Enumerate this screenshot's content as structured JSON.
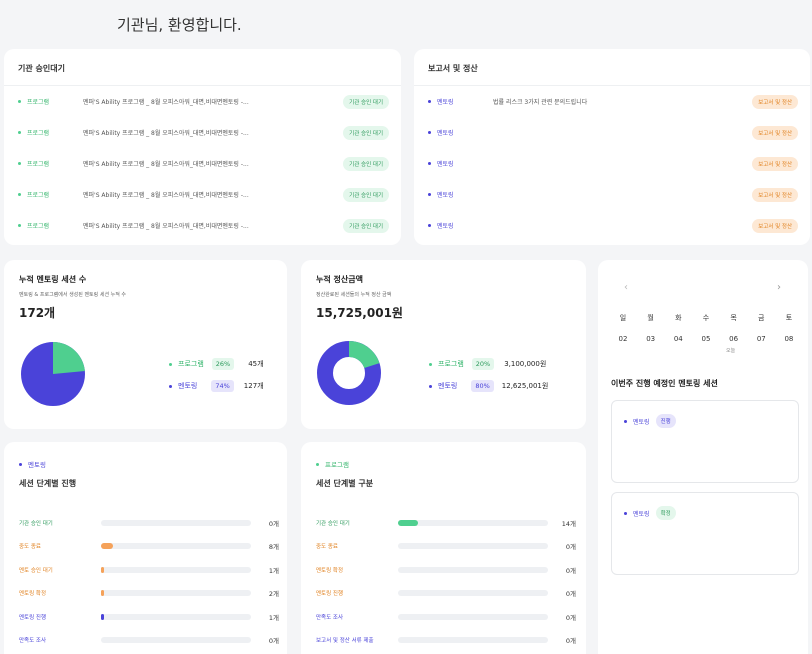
{
  "greeting": "기관님, 환영합니다.",
  "approval": {
    "title": "기관 승인대기",
    "rows": [
      {
        "category": "프로그램",
        "text": "멘퍼'S Ability 프로그램 _ 8월 오피스아워_대면,비대면멘토링 -...",
        "status": "기관 승인 대기"
      },
      {
        "category": "프로그램",
        "text": "멘퍼'S Ability 프로그램 _ 8월 오피스아워_대면,비대면멘토링 -...",
        "status": "기관 승인 대기"
      },
      {
        "category": "프로그램",
        "text": "멘퍼'S Ability 프로그램 _ 8월 오피스아워_대면,비대면멘토링 -...",
        "status": "기관 승인 대기"
      },
      {
        "category": "프로그램",
        "text": "멘퍼'S Ability 프로그램 _ 8월 오피스아워_대면,비대면멘토링 -...",
        "status": "기관 승인 대기"
      },
      {
        "category": "프로그램",
        "text": "멘퍼'S Ability 프로그램 _ 8월 오피스아워_대면,비대면멘토링 -...",
        "status": "기관 승인 대기"
      }
    ]
  },
  "reports": {
    "title": "보고서 및 정산",
    "rows": [
      {
        "category": "멘토링",
        "text": "법률 리스크 3가지 관련 문의드립니다",
        "status": "보고서 및 정산"
      },
      {
        "category": "멘토링",
        "text": "",
        "status": "보고서 및 정산"
      },
      {
        "category": "멘토링",
        "text": "",
        "status": "보고서 및 정산"
      },
      {
        "category": "멘토링",
        "text": "",
        "status": "보고서 및 정산"
      },
      {
        "category": "멘토링",
        "text": "",
        "status": "보고서 및 정산"
      }
    ]
  },
  "sessions_stat": {
    "title": "누적 멘토링 세션 수",
    "subtitle": "멘토링 & 프로그램에서 생성된 멘토링 세션 누적 수",
    "value": "172개",
    "legend": [
      {
        "name": "프로그램",
        "pct": "26%",
        "val": "45개"
      },
      {
        "name": "멘토링",
        "pct": "74%",
        "val": "127개"
      }
    ]
  },
  "settlement_stat": {
    "title": "누적 정산금액",
    "subtitle": "정산완료된 세션들의 누적 정산 금액",
    "value": "15,725,001원",
    "legend": [
      {
        "name": "프로그램",
        "pct": "20%",
        "val": "3,100,000원"
      },
      {
        "name": "멘토링",
        "pct": "80%",
        "val": "12,625,001원"
      }
    ]
  },
  "calendar": {
    "prev": "‹",
    "next": "›",
    "weekdays": [
      "일",
      "월",
      "화",
      "수",
      "목",
      "금",
      "토"
    ],
    "days": [
      "02",
      "03",
      "04",
      "05",
      "06",
      "07",
      "08"
    ],
    "today_label": "오늘",
    "week_title": "이번주 진행 예정인 멘토링 세션",
    "sessions": [
      {
        "category": "멘토링",
        "tag": "진행"
      },
      {
        "category": "멘토링",
        "tag": "확정"
      }
    ]
  },
  "stage_progress": {
    "category": "멘토링",
    "title": "세션 단계별 진행",
    "rows": [
      {
        "label": "기관 승인 대기",
        "count": "0개",
        "fraction": 0
      },
      {
        "label": "중도 종료",
        "count": "8개",
        "fraction": 0.08
      },
      {
        "label": "멘토 승인 대기",
        "count": "1개",
        "fraction": 0.01
      },
      {
        "label": "멘토링 확정",
        "count": "2개",
        "fraction": 0.01
      },
      {
        "label": "멘토링 진행",
        "count": "1개",
        "fraction": 0.01
      },
      {
        "label": "만족도 조사",
        "count": "0개",
        "fraction": 0
      }
    ]
  },
  "stage_category": {
    "category": "프로그램",
    "title": "세션 단계별 구분",
    "rows": [
      {
        "label": "기관 승인 대기",
        "count": "14개",
        "fraction": 0.13
      },
      {
        "label": "중도 종료",
        "count": "0개",
        "fraction": 0
      },
      {
        "label": "멘토링 확정",
        "count": "0개",
        "fraction": 0
      },
      {
        "label": "멘토링 진행",
        "count": "0개",
        "fraction": 0
      },
      {
        "label": "만족도 조사",
        "count": "0개",
        "fraction": 0
      },
      {
        "label": "보고서 및 정산 서류 제출",
        "count": "0개",
        "fraction": 0
      }
    ]
  },
  "colors": {
    "green": "#4fcf8f",
    "purple": "#4a43d9",
    "orange": "#f5a25a",
    "label_green": "#2d9a5c",
    "label_orange": "#e0801f",
    "label_purple": "#4a43d9"
  }
}
